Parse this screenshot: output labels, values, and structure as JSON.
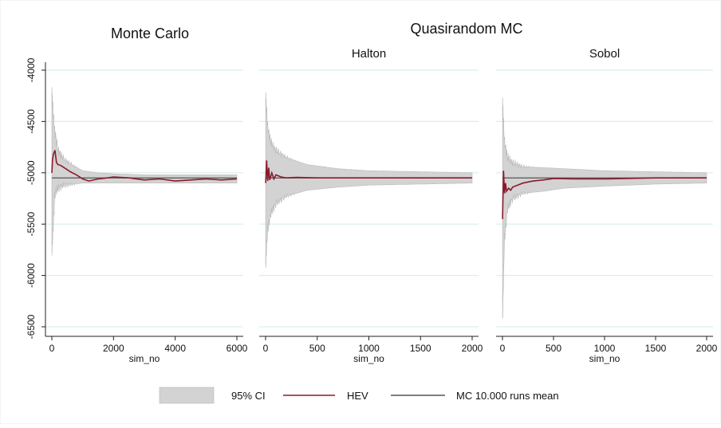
{
  "figure": {
    "left_title": "Monte Carlo",
    "group_title": "Quasirandom MC"
  },
  "chart_data": [
    {
      "type": "line",
      "title": "Monte Carlo",
      "xlabel": "sim_no",
      "ylabel": "",
      "xlim": [
        0,
        6000
      ],
      "ylim": [
        -6500,
        -4000
      ],
      "xticks": [
        "0",
        "2000",
        "4000",
        "6000"
      ],
      "yticks": [
        "-4000",
        "-4500",
        "-5000",
        "-5500",
        "-6000",
        "-6500"
      ],
      "grid": true,
      "mc_mean": -5050,
      "series": [
        {
          "name": "HEV",
          "x": [
            1,
            20,
            50,
            100,
            150,
            200,
            300,
            400,
            500,
            600,
            800,
            1000,
            1200,
            1500,
            1800,
            2000,
            2500,
            3000,
            3500,
            4000,
            4500,
            5000,
            5500,
            6000
          ],
          "values": [
            -5000,
            -4880,
            -4820,
            -4780,
            -4900,
            -4920,
            -4930,
            -4950,
            -4970,
            -4990,
            -5020,
            -5060,
            -5080,
            -5060,
            -5050,
            -5040,
            -5050,
            -5070,
            -5060,
            -5080,
            -5070,
            -5060,
            -5070,
            -5060
          ]
        },
        {
          "name": "95% CI",
          "x": [
            1,
            50,
            100,
            200,
            400,
            700,
            1000,
            1500,
            2000,
            3000,
            4000,
            5000,
            6000
          ],
          "upper": [
            -4200,
            -4450,
            -4600,
            -4780,
            -4870,
            -4930,
            -4980,
            -5000,
            -5010,
            -5020,
            -5020,
            -5020,
            -5020
          ],
          "lower": [
            -5780,
            -5500,
            -5200,
            -5150,
            -5120,
            -5110,
            -5100,
            -5100,
            -5100,
            -5100,
            -5100,
            -5100,
            -5100
          ]
        }
      ]
    },
    {
      "type": "line",
      "title": "Halton",
      "xlabel": "sim_no",
      "ylabel": "",
      "xlim": [
        0,
        2000
      ],
      "ylim": [
        -6500,
        -4000
      ],
      "xticks": [
        "0",
        "500",
        "1000",
        "1500",
        "2000"
      ],
      "grid": true,
      "mc_mean": -5050,
      "series": [
        {
          "name": "HEV",
          "x": [
            1,
            10,
            20,
            30,
            40,
            60,
            80,
            100,
            150,
            200,
            300,
            500,
            1000,
            1500,
            2000
          ],
          "values": [
            -5100,
            -4880,
            -5080,
            -4950,
            -5070,
            -5000,
            -5060,
            -5020,
            -5040,
            -5050,
            -5045,
            -5050,
            -5050,
            -5050,
            -5050
          ]
        },
        {
          "name": "95% CI",
          "x": [
            1,
            20,
            50,
            100,
            200,
            400,
            700,
            1000,
            1500,
            2000
          ],
          "upper": [
            -4250,
            -4550,
            -4700,
            -4780,
            -4850,
            -4920,
            -4960,
            -4980,
            -4990,
            -5000
          ],
          "lower": [
            -5900,
            -5550,
            -5400,
            -5300,
            -5230,
            -5170,
            -5140,
            -5120,
            -5110,
            -5100
          ]
        }
      ]
    },
    {
      "type": "line",
      "title": "Sobol",
      "xlabel": "sim_no",
      "ylabel": "",
      "xlim": [
        0,
        2000
      ],
      "ylim": [
        -6500,
        -4000
      ],
      "xticks": [
        "0",
        "500",
        "1000",
        "1500",
        "2000"
      ],
      "grid": true,
      "mc_mean": -5050,
      "series": [
        {
          "name": "HEV",
          "x": [
            1,
            10,
            20,
            30,
            40,
            60,
            80,
            100,
            150,
            200,
            300,
            400,
            500,
            700,
            1000,
            1500,
            2000
          ],
          "values": [
            -5450,
            -4980,
            -5200,
            -5100,
            -5180,
            -5150,
            -5170,
            -5140,
            -5120,
            -5100,
            -5080,
            -5070,
            -5055,
            -5060,
            -5060,
            -5050,
            -5050
          ]
        },
        {
          "name": "95% CI",
          "x": [
            1,
            20,
            50,
            100,
            200,
            400,
            600,
            1000,
            1500,
            2000
          ],
          "upper": [
            -4300,
            -4700,
            -4850,
            -4900,
            -4940,
            -4950,
            -4960,
            -4980,
            -4990,
            -5000
          ],
          "lower": [
            -6420,
            -5650,
            -5350,
            -5250,
            -5200,
            -5180,
            -5150,
            -5130,
            -5110,
            -5100
          ]
        }
      ]
    }
  ],
  "legend": {
    "placement": "bottom",
    "items": [
      {
        "label": "95% CI",
        "kind": "band"
      },
      {
        "label": "HEV",
        "kind": "line"
      },
      {
        "label": "MC 10.000 runs mean",
        "kind": "line"
      }
    ]
  },
  "colors": {
    "ci_band": "#d3d3d3",
    "ci_edge": "#b8b8b8",
    "hev_line": "#8b1a2b",
    "mean_line": "#555555",
    "grid": "#d9efec",
    "axis": "#222222"
  }
}
